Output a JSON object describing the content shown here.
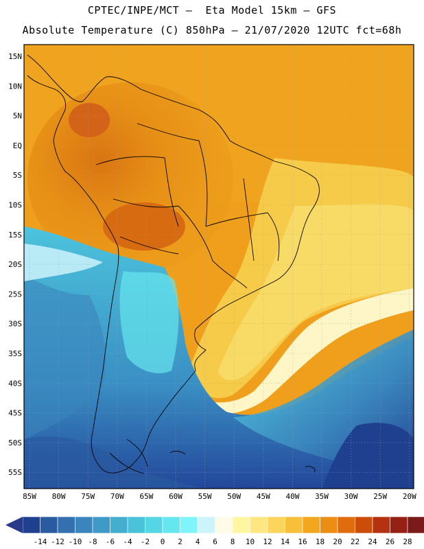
{
  "title_line1": "CPTEC/INPE/MCT –  Eta Model 15km – GFS",
  "title_line2": "Absolute Temperature (C) 850hPa – 21/07/2020 12UTC fct=68h",
  "lat_labels": [
    "15N",
    "10N",
    "5N",
    "EQ",
    "5S",
    "10S",
    "15S",
    "20S",
    "25S",
    "30S",
    "35S",
    "40S",
    "45S",
    "50S",
    "55S"
  ],
  "lon_labels": [
    "85W",
    "80W",
    "75W",
    "70W",
    "65W",
    "60W",
    "55W",
    "50W",
    "45W",
    "40W",
    "35W",
    "30W",
    "25W",
    "20W"
  ],
  "legend": {
    "values": [
      "-14",
      "-12",
      "-10",
      "-8",
      "-6",
      "-4",
      "-2",
      "0",
      "2",
      "4",
      "6",
      "8",
      "10",
      "12",
      "14",
      "16",
      "18",
      "20",
      "22",
      "24",
      "26",
      "28"
    ],
    "colors": [
      "#1f3f8f",
      "#2a5aa0",
      "#3470b0",
      "#3a85bd",
      "#3f9ac7",
      "#44aecf",
      "#4ac3da",
      "#55d6e4",
      "#66e6ee",
      "#7ff5fb",
      "#cdf3fb",
      "#fffbe6",
      "#fff6a0",
      "#ffe680",
      "#fdd45c",
      "#f7bf3a",
      "#f2a71e",
      "#eb8e14",
      "#e06c0e",
      "#cc4c0a",
      "#b53210",
      "#962014",
      "#7a1a1a"
    ],
    "arrow_left": "#2a3a8a",
    "arrow_right": "#7a1020"
  }
}
